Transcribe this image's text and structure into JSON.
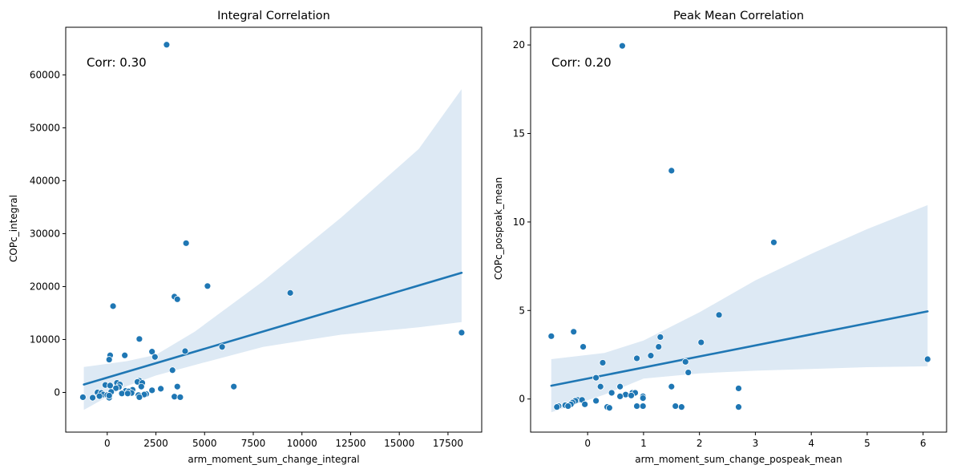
{
  "chart_data": [
    {
      "type": "scatter",
      "title": "Integral Correlation",
      "xlabel": "arm_moment_sum_change_integral",
      "ylabel": "COPc_integral",
      "annotation": "Corr: 0.30",
      "xlim": [
        -2132,
        19232
      ],
      "ylim": [
        -7500,
        69000
      ],
      "xticks": [
        0,
        2500,
        5000,
        7500,
        10000,
        12500,
        15000,
        17500
      ],
      "xtick_labels": [
        "0",
        "2500",
        "5000",
        "7500",
        "10000",
        "12500",
        "15000",
        "17500"
      ],
      "yticks": [
        0,
        10000,
        20000,
        30000,
        40000,
        50000,
        60000
      ],
      "ytick_labels": [
        "0",
        "10000",
        "20000",
        "30000",
        "40000",
        "50000",
        "60000"
      ],
      "grid": false,
      "regression": {
        "x_start": -1200,
        "y_start": 1500,
        "x_end": 18200,
        "y_end": 22600,
        "ci_upper": [
          [
            -1200,
            4800
          ],
          [
            1000,
            5900
          ],
          [
            2500,
            7100
          ],
          [
            4500,
            11500
          ],
          [
            8000,
            21000
          ],
          [
            12000,
            33000
          ],
          [
            16000,
            46000
          ],
          [
            18200,
            57300
          ]
        ],
        "ci_lower": [
          [
            -1200,
            -3300
          ],
          [
            1000,
            1200
          ],
          [
            2500,
            3200
          ],
          [
            4500,
            5200
          ],
          [
            8000,
            8600
          ],
          [
            12000,
            10900
          ],
          [
            16000,
            12300
          ],
          [
            18200,
            13300
          ]
        ]
      },
      "points": [
        [
          3050,
          65700
        ],
        [
          4050,
          28200
        ],
        [
          5150,
          20100
        ],
        [
          9400,
          18800
        ],
        [
          3450,
          18100
        ],
        [
          3600,
          17600
        ],
        [
          300,
          16300
        ],
        [
          18200,
          11300
        ],
        [
          1650,
          10100
        ],
        [
          5900,
          8600
        ],
        [
          4000,
          7800
        ],
        [
          2300,
          7700
        ],
        [
          900,
          7000
        ],
        [
          150,
          7000
        ],
        [
          2450,
          6700
        ],
        [
          100,
          6200
        ],
        [
          3350,
          4200
        ],
        [
          1650,
          2200
        ],
        [
          1550,
          2000
        ],
        [
          1800,
          1800
        ],
        [
          500,
          1800
        ],
        [
          650,
          1500
        ],
        [
          6500,
          1100
        ],
        [
          1750,
          1100
        ],
        [
          3600,
          1100
        ],
        [
          -100,
          1400
        ],
        [
          150,
          1300
        ],
        [
          600,
          1000
        ],
        [
          450,
          800
        ],
        [
          2750,
          700
        ],
        [
          1300,
          500
        ],
        [
          2300,
          400
        ],
        [
          950,
          300
        ],
        [
          1100,
          200
        ],
        [
          200,
          100
        ],
        [
          -500,
          0
        ],
        [
          -300,
          -100
        ],
        [
          1250,
          -100
        ],
        [
          750,
          -200
        ],
        [
          1050,
          -200
        ],
        [
          2000,
          -300
        ],
        [
          1900,
          -400
        ],
        [
          1600,
          -500
        ],
        [
          -200,
          -400
        ],
        [
          0,
          -500
        ],
        [
          1650,
          -900
        ],
        [
          3450,
          -800
        ],
        [
          3750,
          -900
        ],
        [
          100,
          -1000
        ],
        [
          -1250,
          -900
        ],
        [
          -750,
          -1000
        ],
        [
          -400,
          -700
        ],
        [
          100,
          -600
        ]
      ],
      "color": "#1f77b4",
      "ci_color": "#dde9f4"
    },
    {
      "type": "scatter",
      "title": "Peak Mean Correlation",
      "xlabel": "arm_moment_sum_change_pospeak_mean",
      "ylabel": "COPc_pospeak_mean",
      "annotation": "Corr: 0.20",
      "xlim": [
        -1.02,
        6.42
      ],
      "ylim": [
        -1.87,
        21.0
      ],
      "xticks": [
        0,
        1,
        2,
        3,
        4,
        5,
        6
      ],
      "xtick_labels": [
        "0",
        "1",
        "2",
        "3",
        "4",
        "5",
        "6"
      ],
      "yticks": [
        0,
        5,
        10,
        15,
        20
      ],
      "ytick_labels": [
        "0",
        "5",
        "10",
        "15",
        "20"
      ],
      "grid": false,
      "regression": {
        "x_start": -0.65,
        "y_start": 0.75,
        "x_end": 6.08,
        "y_end": 4.95,
        "ci_upper": [
          [
            -0.65,
            2.25
          ],
          [
            0.3,
            2.6
          ],
          [
            1.0,
            3.3
          ],
          [
            2.0,
            4.9
          ],
          [
            3.0,
            6.7
          ],
          [
            4.0,
            8.2
          ],
          [
            5.0,
            9.6
          ],
          [
            6.08,
            10.95
          ]
        ],
        "ci_lower": [
          [
            -0.65,
            -0.75
          ],
          [
            0.3,
            0.25
          ],
          [
            1.0,
            1.15
          ],
          [
            2.0,
            1.45
          ],
          [
            3.0,
            1.6
          ],
          [
            4.0,
            1.7
          ],
          [
            5.0,
            1.8
          ],
          [
            6.08,
            1.85
          ]
        ]
      },
      "points": [
        [
          0.62,
          19.95
        ],
        [
          1.5,
          12.9
        ],
        [
          3.33,
          8.85
        ],
        [
          2.35,
          4.75
        ],
        [
          -0.25,
          3.8
        ],
        [
          -0.65,
          3.55
        ],
        [
          1.3,
          3.5
        ],
        [
          2.03,
          3.2
        ],
        [
          -0.08,
          2.95
        ],
        [
          1.27,
          2.95
        ],
        [
          1.13,
          2.45
        ],
        [
          0.88,
          2.3
        ],
        [
          6.08,
          2.25
        ],
        [
          1.75,
          2.1
        ],
        [
          0.27,
          2.05
        ],
        [
          1.8,
          1.5
        ],
        [
          0.15,
          1.2
        ],
        [
          0.23,
          0.7
        ],
        [
          0.58,
          0.7
        ],
        [
          1.5,
          0.7
        ],
        [
          2.7,
          0.6
        ],
        [
          0.43,
          0.35
        ],
        [
          0.8,
          0.35
        ],
        [
          0.85,
          0.35
        ],
        [
          0.68,
          0.25
        ],
        [
          0.78,
          0.2
        ],
        [
          0.58,
          0.15
        ],
        [
          0.99,
          0.15
        ],
        [
          0.99,
          0.05
        ],
        [
          -0.18,
          -0.05
        ],
        [
          -0.1,
          -0.05
        ],
        [
          0.15,
          -0.1
        ],
        [
          -0.22,
          -0.1
        ],
        [
          -0.27,
          -0.2
        ],
        [
          -0.3,
          -0.3
        ],
        [
          -0.05,
          -0.3
        ],
        [
          -0.4,
          -0.35
        ],
        [
          -0.52,
          -0.4
        ],
        [
          -0.35,
          -0.4
        ],
        [
          0.88,
          -0.4
        ],
        [
          0.99,
          -0.4
        ],
        [
          1.57,
          -0.4
        ],
        [
          -0.55,
          -0.45
        ],
        [
          0.35,
          -0.45
        ],
        [
          1.68,
          -0.45
        ],
        [
          2.7,
          -0.45
        ],
        [
          0.39,
          -0.5
        ]
      ],
      "color": "#1f77b4",
      "ci_color": "#dde9f4"
    }
  ]
}
